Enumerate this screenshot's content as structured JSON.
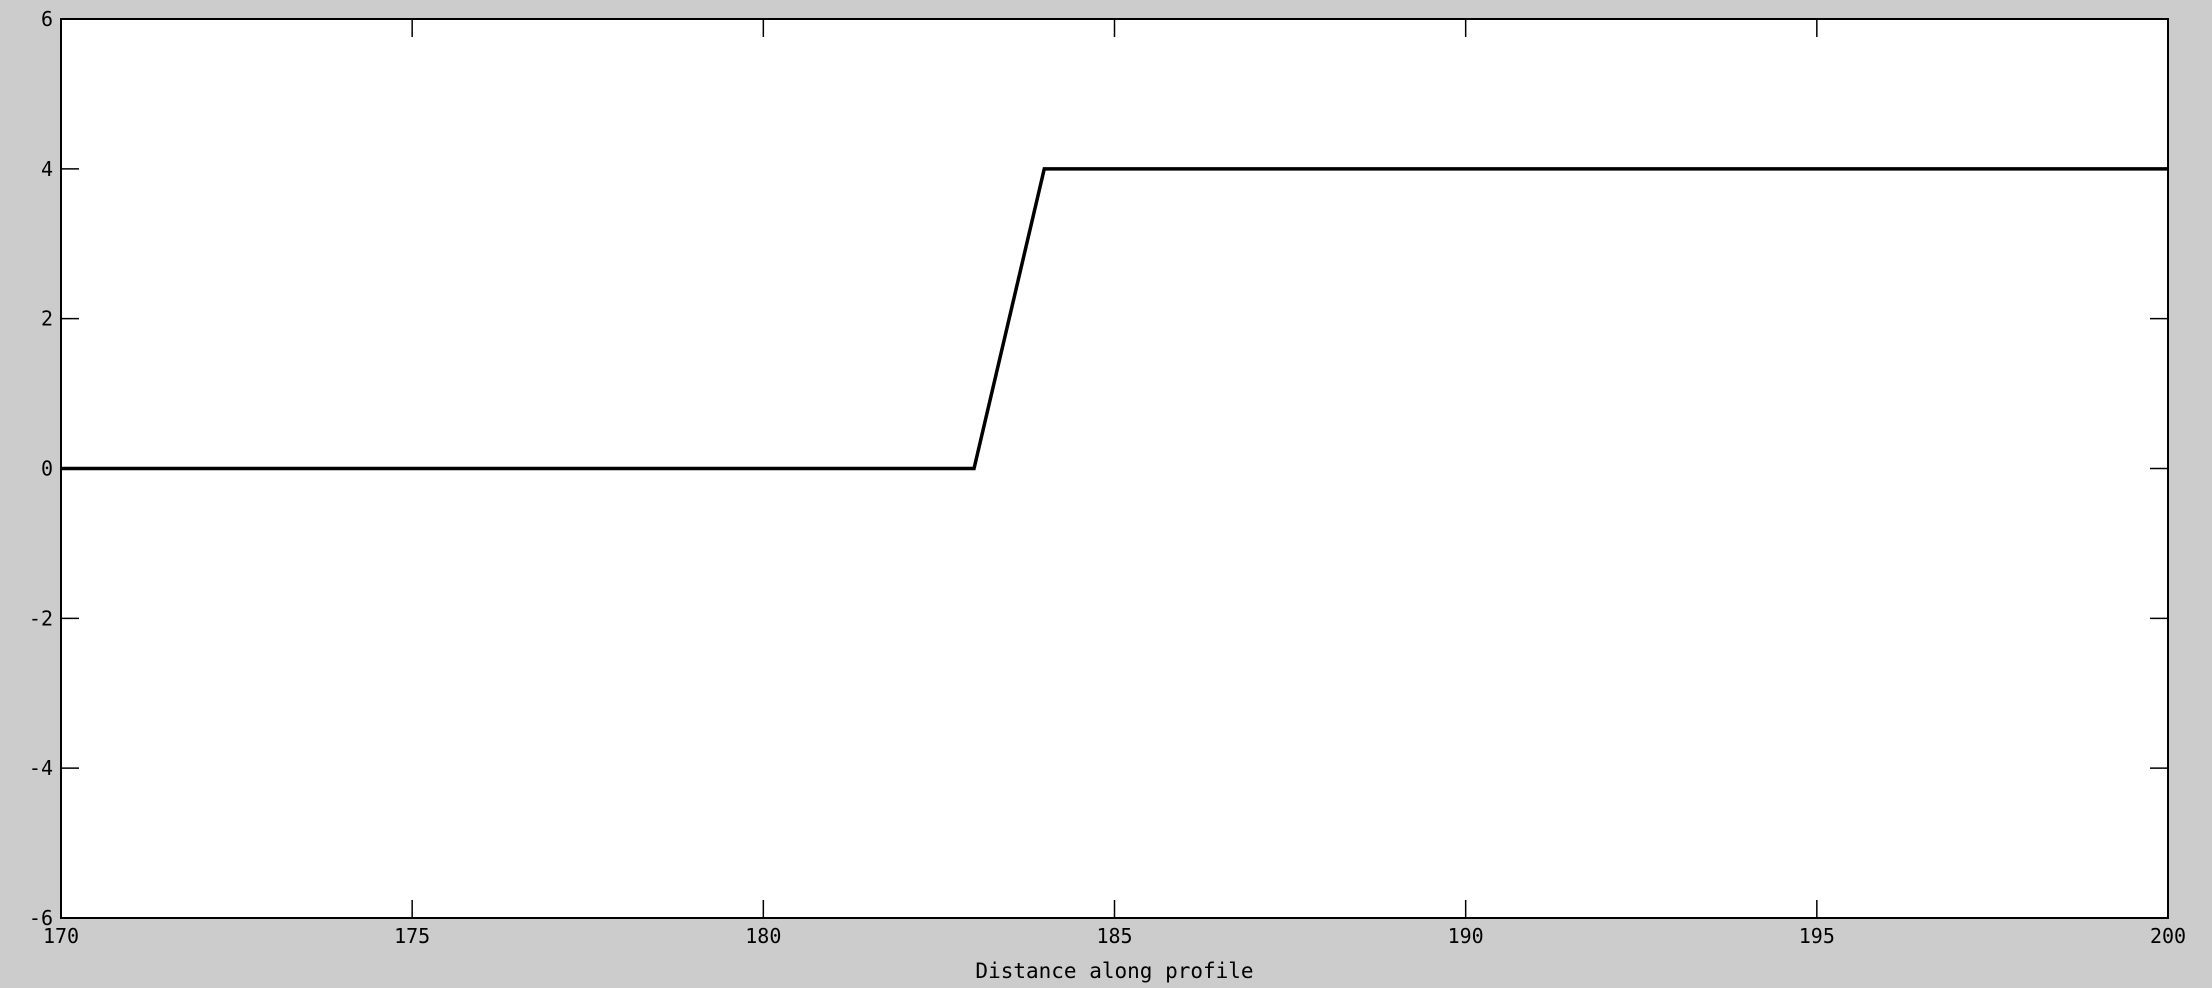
{
  "chart_data": {
    "type": "line",
    "title": "",
    "xlabel": "Distance along profile",
    "ylabel": "",
    "xlim": [
      170,
      200
    ],
    "ylim": [
      -6,
      6
    ],
    "xticks": [
      170,
      175,
      180,
      185,
      190,
      195,
      200
    ],
    "yticks": [
      -6,
      -4,
      -2,
      0,
      2,
      4,
      6
    ],
    "grid": false,
    "series": [
      {
        "color": "#000000",
        "x": [
          170,
          183,
          184,
          200
        ],
        "y": [
          0,
          0,
          4,
          4
        ]
      }
    ]
  },
  "colors": {
    "figure_background": "#cccccc",
    "plot_background": "#ffffff",
    "axes": "#000000"
  }
}
